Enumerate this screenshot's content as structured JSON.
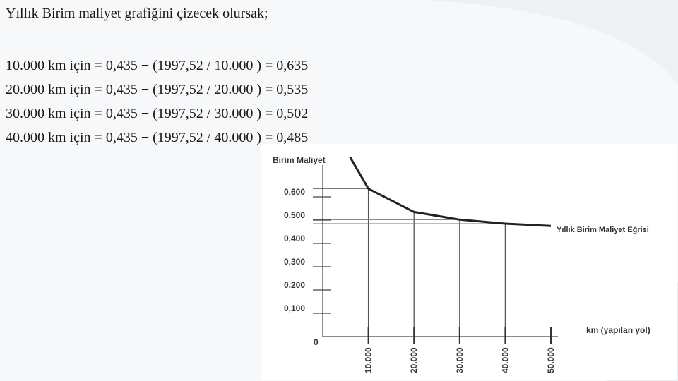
{
  "slide": {
    "title": "Yıllık Birim maliyet grafiğini çizecek olursak;",
    "lines": [
      "10.000 km için = 0,435 + (1997,52 / 10.000 ) = 0,635",
      "20.000 km için = 0,435 + (1997,52 / 20.000 ) = 0,535",
      "30.000 km için = 0,435 + (1997,52 / 30.000 ) = 0,502",
      "40.000 km için = 0,435 + (1997,52 / 40.000 ) = 0,485"
    ]
  },
  "chart_data": {
    "type": "line",
    "ylabel": "Birim Maliyet",
    "xlabel": "km (yapılan yol)",
    "origin_label": "0",
    "series_label": "Yıllık Birim Maliyet Eğrisi",
    "y_ticks": [
      {
        "value": 0.6,
        "label": "0,600"
      },
      {
        "value": 0.5,
        "label": "0,500"
      },
      {
        "value": 0.4,
        "label": "0,400"
      },
      {
        "value": 0.3,
        "label": "0,300"
      },
      {
        "value": 0.2,
        "label": "0,200"
      },
      {
        "value": 0.1,
        "label": "0,100"
      }
    ],
    "x_ticks": [
      {
        "value": 10000,
        "label": "10.000"
      },
      {
        "value": 20000,
        "label": "20.000"
      },
      {
        "value": 30000,
        "label": "30.000"
      },
      {
        "value": 40000,
        "label": "40.000"
      },
      {
        "value": 50000,
        "label": "50.000"
      }
    ],
    "xlim": [
      0,
      50000
    ],
    "ylim": [
      0,
      0.7
    ],
    "series": [
      {
        "x": [
          6000,
          10000,
          20000,
          30000,
          40000,
          50000
        ],
        "values": [
          0.77,
          0.635,
          0.535,
          0.502,
          0.485,
          0.475
        ]
      }
    ],
    "guide_points": [
      {
        "x": 10000,
        "y": 0.635
      },
      {
        "x": 20000,
        "y": 0.535
      },
      {
        "x": 30000,
        "y": 0.502
      },
      {
        "x": 40000,
        "y": 0.485
      }
    ],
    "grid": false
  }
}
